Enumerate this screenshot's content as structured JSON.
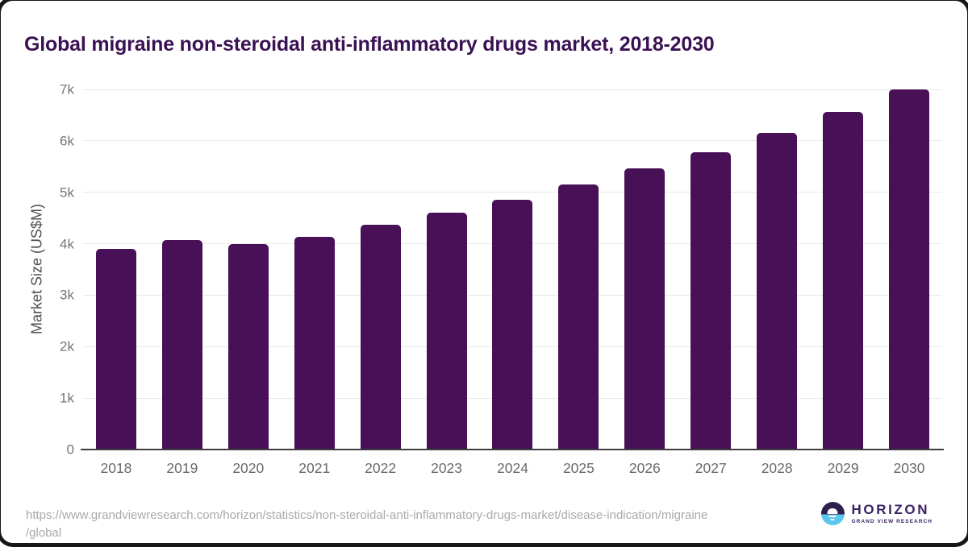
{
  "title": "Global migraine non-steroidal anti-inflammatory drugs market, 2018-2030",
  "chart_data": {
    "type": "bar",
    "title": "Global migraine non-steroidal anti-inflammatory drugs market, 2018-2030",
    "categories": [
      "2018",
      "2019",
      "2020",
      "2021",
      "2022",
      "2023",
      "2024",
      "2025",
      "2026",
      "2027",
      "2028",
      "2029",
      "2030"
    ],
    "values": [
      3900,
      4070,
      4000,
      4130,
      4370,
      4600,
      4860,
      5150,
      5460,
      5780,
      6150,
      6560,
      7000
    ],
    "xlabel": "",
    "ylabel": "Market Size (US$M)",
    "ylim": [
      0,
      7000
    ],
    "y_ticks": [
      "0",
      "1k",
      "2k",
      "3k",
      "4k",
      "5k",
      "6k",
      "7k"
    ],
    "grid": "horizontal-light",
    "legend": "none",
    "bar_color": "#481057"
  },
  "footer": {
    "url_lines": [
      "https://www.grandviewresearch.com/horizon/statistics/non-steroidal-anti-inflammatory-drugs-market/disease-indication/migraine",
      "/global"
    ]
  },
  "logo": {
    "name": "HORIZON",
    "subtitle": "GRAND VIEW RESEARCH"
  },
  "colors": {
    "bar": "#481057",
    "title_text": "#3a1253",
    "tick_text": "#757575",
    "gridline": "#e8e8e8",
    "baseline": "#3d3d3d",
    "url_text": "#a9a9a9",
    "logo_purple": "#2f1f4e",
    "logo_blue": "#5dc6ec",
    "logo_text": "#3b2365"
  }
}
